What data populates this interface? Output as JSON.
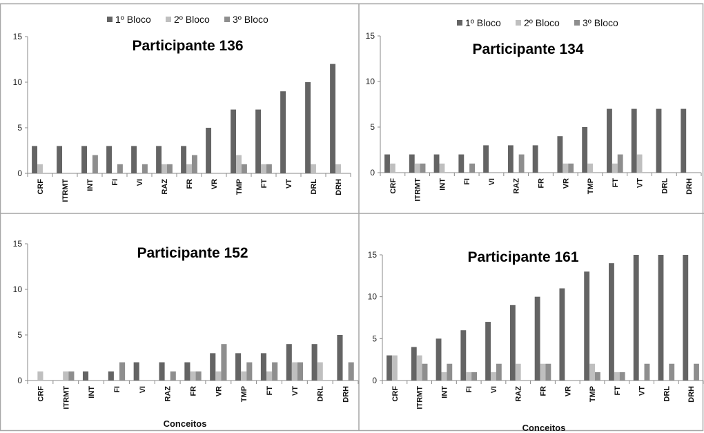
{
  "figure": {
    "legend": [
      "1º Bloco",
      "2º Bloco",
      "3º Bloco"
    ],
    "xlabel": "Conceitos",
    "colors": [
      "#646464",
      "#bfbfbf",
      "#8e8e8e"
    ],
    "border_color": "#a6a6a6"
  },
  "chart_data": [
    {
      "type": "bar",
      "title": "Participante 136",
      "categories": [
        "CRF",
        "ITRMT",
        "INT",
        "FI",
        "VI",
        "RAZ",
        "FR",
        "VR",
        "TMP",
        "FT",
        "VT",
        "DRL",
        "DRH"
      ],
      "ylim": [
        0,
        15
      ],
      "yticks": [
        0,
        5,
        10,
        15
      ],
      "xlabel": "",
      "legend": "top",
      "series": [
        {
          "name": "1º Bloco",
          "values": [
            3,
            3,
            3,
            3,
            3,
            3,
            3,
            5,
            7,
            7,
            9,
            10,
            12
          ]
        },
        {
          "name": "2º Bloco",
          "values": [
            1,
            0,
            0,
            0,
            0,
            1,
            1,
            0,
            2,
            1,
            0,
            1,
            1
          ]
        },
        {
          "name": "3º Bloco",
          "values": [
            0,
            0,
            2,
            1,
            1,
            1,
            2,
            0,
            1,
            1,
            0,
            0,
            0
          ]
        }
      ]
    },
    {
      "type": "bar",
      "title": "Participante 134",
      "categories": [
        "CRF",
        "ITRMT",
        "INT",
        "FI",
        "VI",
        "RAZ",
        "FR",
        "VR",
        "TMP",
        "FT",
        "VT",
        "DRL",
        "DRH"
      ],
      "ylim": [
        0,
        15
      ],
      "yticks": [
        0,
        5,
        10,
        15
      ],
      "xlabel": "",
      "legend": "top",
      "series": [
        {
          "name": "1º Bloco",
          "values": [
            2,
            2,
            2,
            2,
            3,
            3,
            3,
            4,
            5,
            7,
            7,
            7,
            7
          ]
        },
        {
          "name": "2º Bloco",
          "values": [
            1,
            1,
            1,
            0,
            0,
            0,
            0,
            1,
            1,
            1,
            2,
            0,
            0
          ]
        },
        {
          "name": "3º Bloco",
          "values": [
            0,
            1,
            0,
            1,
            0,
            2,
            0,
            1,
            0,
            2,
            0,
            0,
            0
          ]
        }
      ]
    },
    {
      "type": "bar",
      "title": "Participante 152",
      "categories": [
        "CRF",
        "ITRMT",
        "INT",
        "FI",
        "VI",
        "RAZ",
        "FR",
        "VR",
        "TMP",
        "FT",
        "VT",
        "DRL",
        "DRH"
      ],
      "ylim": [
        0,
        15
      ],
      "yticks": [
        0,
        5,
        10,
        15
      ],
      "xlabel": "Conceitos",
      "series": [
        {
          "name": "1º Bloco",
          "values": [
            0,
            0,
            1,
            1,
            2,
            2,
            2,
            3,
            3,
            3,
            4,
            4,
            5
          ]
        },
        {
          "name": "2º Bloco",
          "values": [
            1,
            1,
            0,
            0,
            0,
            0,
            1,
            1,
            1,
            1,
            2,
            2,
            0
          ]
        },
        {
          "name": "3º Bloco",
          "values": [
            0,
            1,
            0,
            2,
            0,
            1,
            1,
            4,
            2,
            2,
            2,
            0,
            2
          ]
        }
      ]
    },
    {
      "type": "bar",
      "title": "Participante 161",
      "categories": [
        "CRF",
        "ITRMT",
        "INT",
        "FI",
        "VI",
        "RAZ",
        "FR",
        "VR",
        "TMP",
        "FT",
        "VT",
        "DRL",
        "DRH"
      ],
      "ylim": [
        0,
        15
      ],
      "yticks": [
        0,
        5,
        10,
        15
      ],
      "xlabel": "Conceitos",
      "series": [
        {
          "name": "1º Bloco",
          "values": [
            3,
            4,
            5,
            6,
            7,
            9,
            10,
            11,
            13,
            14,
            15,
            15,
            15
          ]
        },
        {
          "name": "2º Bloco",
          "values": [
            3,
            3,
            1,
            1,
            1,
            2,
            2,
            0,
            2,
            1,
            0,
            0,
            0
          ]
        },
        {
          "name": "3º Bloco",
          "values": [
            0,
            2,
            2,
            1,
            2,
            0,
            2,
            0,
            1,
            1,
            2,
            2,
            2
          ]
        }
      ]
    }
  ]
}
